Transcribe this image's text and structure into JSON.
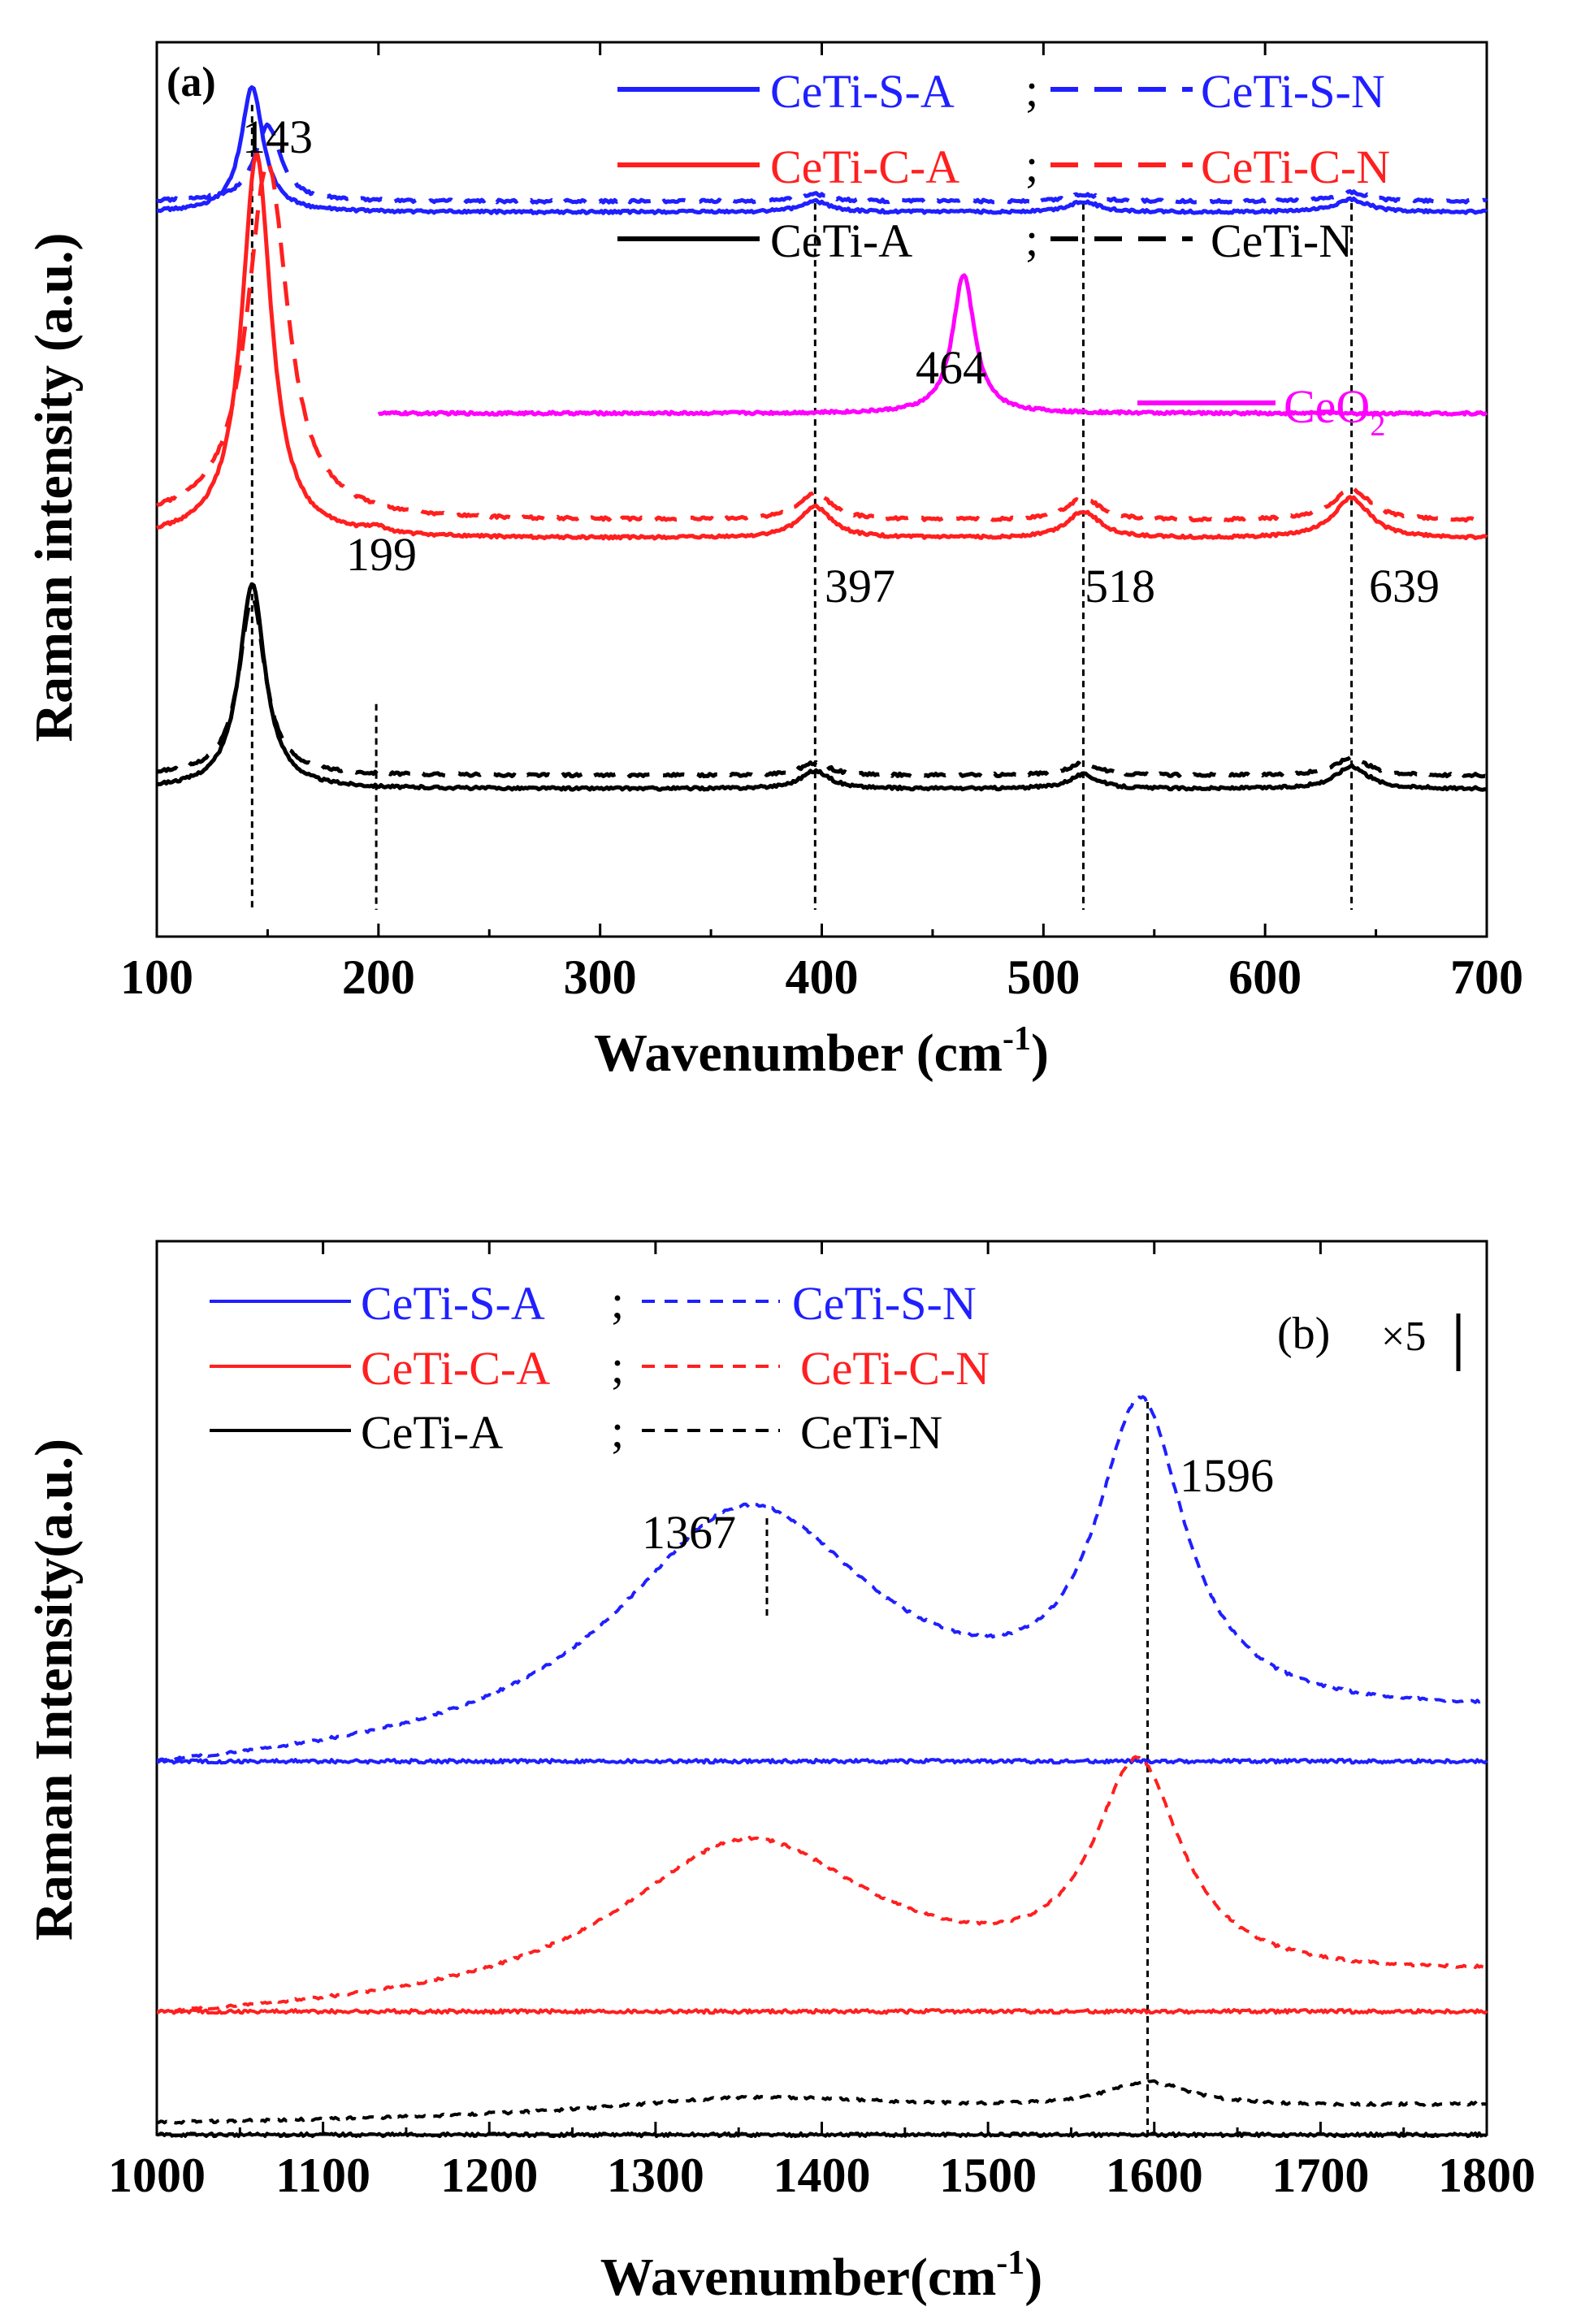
{
  "figure": {
    "panels": [
      "(a)",
      "(b)"
    ]
  },
  "chart_data": [
    {
      "panel_label": "(a)",
      "type": "line",
      "xlabel": "Wavenumber (cm",
      "xlabel_sup": "-1",
      "xlabel_close": ")",
      "ylabel": "Raman intensity (a.u.)",
      "xlim": [
        100,
        700
      ],
      "xticks": [
        "100",
        "200",
        "300",
        "400",
        "500",
        "600",
        "700"
      ],
      "yticks": "none",
      "legend": [
        {
          "solid": "CeTi-S-A",
          "sep": ";",
          "dashed": "CeTi-S-N",
          "color": "#1f1fff"
        },
        {
          "solid": "CeTi-C-A",
          "sep": ";",
          "dashed": "CeTi-C-N",
          "color": "#ff1f1f"
        },
        {
          "solid": "CeTi-A",
          "sep": ";",
          "dashed": "CeTi-N",
          "color": "#000000"
        }
      ],
      "ceo2_label_main": "CeO",
      "ceo2_label_sub": "2",
      "ceo2_color": "#ff00ff",
      "peak_labels": [
        "143",
        "464",
        "199",
        "397",
        "518",
        "639"
      ],
      "reference_lines": [
        143,
        199,
        397,
        518,
        639
      ],
      "series": [
        {
          "name": "CeTi-S-A",
          "color": "#1f1fff",
          "style": "solid",
          "baseline": 0.81,
          "peaks": [
            {
              "x": 143,
              "h": 0.14,
              "w": 6
            },
            {
              "x": 397,
              "h": 0.012,
              "w": 8
            },
            {
              "x": 518,
              "h": 0.012,
              "w": 8
            },
            {
              "x": 639,
              "h": 0.014,
              "w": 9
            }
          ]
        },
        {
          "name": "CeTi-S-N",
          "color": "#1f1fff",
          "style": "dashed",
          "baseline": 0.822,
          "peaks": [
            {
              "x": 150,
              "h": 0.085,
              "w": 7
            },
            {
              "x": 397,
              "h": 0.008,
              "w": 8
            },
            {
              "x": 518,
              "h": 0.008,
              "w": 8
            },
            {
              "x": 639,
              "h": 0.01,
              "w": 9
            }
          ]
        },
        {
          "name": "CeO2",
          "color": "#ff00ff",
          "style": "solid",
          "baseline": 0.585,
          "x_start": 200,
          "peaks": [
            {
              "x": 464,
              "h": 0.155,
              "w": 6
            }
          ]
        },
        {
          "name": "CeTi-C-A",
          "color": "#ff1f1f",
          "style": "solid",
          "baseline": 0.445,
          "peaks": [
            {
              "x": 145,
              "h": 0.43,
              "w": 8
            },
            {
              "x": 199,
              "h": 0.006,
              "w": 6
            },
            {
              "x": 397,
              "h": 0.035,
              "w": 9
            },
            {
              "x": 518,
              "h": 0.03,
              "w": 9
            },
            {
              "x": 639,
              "h": 0.045,
              "w": 10
            }
          ]
        },
        {
          "name": "CeTi-C-N",
          "color": "#ff1f1f",
          "style": "dashed",
          "baseline": 0.465,
          "peaks": [
            {
              "x": 150,
              "h": 0.4,
              "w": 11
            },
            {
              "x": 397,
              "h": 0.03,
              "w": 9
            },
            {
              "x": 518,
              "h": 0.025,
              "w": 9
            },
            {
              "x": 639,
              "h": 0.035,
              "w": 10
            }
          ]
        },
        {
          "name": "CeTi-A",
          "color": "#000000",
          "style": "solid",
          "baseline": 0.165,
          "peaks": [
            {
              "x": 143,
              "h": 0.23,
              "w": 7
            },
            {
              "x": 397,
              "h": 0.02,
              "w": 8
            },
            {
              "x": 518,
              "h": 0.016,
              "w": 8
            },
            {
              "x": 639,
              "h": 0.025,
              "w": 9
            }
          ]
        },
        {
          "name": "CeTi-N",
          "color": "#000000",
          "style": "dashed",
          "baseline": 0.18,
          "peaks": [
            {
              "x": 143,
              "h": 0.2,
              "w": 7
            },
            {
              "x": 397,
              "h": 0.014,
              "w": 8
            },
            {
              "x": 518,
              "h": 0.014,
              "w": 8
            },
            {
              "x": 639,
              "h": 0.02,
              "w": 9
            }
          ]
        }
      ]
    },
    {
      "panel_label": "(b)",
      "type": "line",
      "xlabel": "Wavenumber(cm",
      "xlabel_sup": "-1",
      "xlabel_close": ")",
      "ylabel": "Raman Intensity(a.u.)",
      "xlim": [
        1000,
        1800
      ],
      "xticks": [
        "1000",
        "1100",
        "1200",
        "1300",
        "1400",
        "1500",
        "1600",
        "1700",
        "1800"
      ],
      "yticks": "none",
      "scale_text": "×5",
      "legend": [
        {
          "solid": "CeTi-S-A",
          "sep": ";",
          "dashed": "CeTi-S-N",
          "color": "#1f1fff"
        },
        {
          "solid": "CeTi-C-A",
          "sep": ";",
          "dashed": "CeTi-C-N",
          "color": "#ff1f1f"
        },
        {
          "solid": "CeTi-A",
          "sep": ";",
          "dashed": "CeTi-N",
          "color": "#000000"
        }
      ],
      "peak_labels": [
        "1367",
        "1596"
      ],
      "reference_lines": [
        1367,
        1596
      ],
      "series": [
        {
          "name": "CeTi-S-N",
          "color": "#1f1fff",
          "style": "dashed",
          "baseline_left": 0.4,
          "baseline_right": 0.465,
          "peaks": [
            {
              "x": 1355,
              "h": 0.27,
              "w": 95
            },
            {
              "x": 1592,
              "h": 0.34,
              "w": 32
            }
          ]
        },
        {
          "name": "CeTi-S-A",
          "color": "#1f1fff",
          "style": "solid",
          "flat": 0.418
        },
        {
          "name": "CeTi-C-N",
          "color": "#ff1f1f",
          "style": "dashed",
          "baseline_left": 0.125,
          "baseline_right": 0.175,
          "peaks": [
            {
              "x": 1355,
              "h": 0.18,
              "w": 95
            },
            {
              "x": 1590,
              "h": 0.235,
              "w": 32
            }
          ]
        },
        {
          "name": "CeTi-C-A",
          "color": "#ff1f1f",
          "style": "solid",
          "flat": 0.138
        },
        {
          "name": "CeTi-N",
          "color": "#000000",
          "style": "dashed",
          "baseline_left": 0.012,
          "baseline_right": 0.033,
          "peaks": [
            {
              "x": 1360,
              "h": 0.02,
              "w": 110
            },
            {
              "x": 1596,
              "h": 0.028,
              "w": 32
            }
          ]
        },
        {
          "name": "CeTi-A",
          "color": "#000000",
          "style": "solid",
          "flat": 0.0
        }
      ]
    }
  ]
}
